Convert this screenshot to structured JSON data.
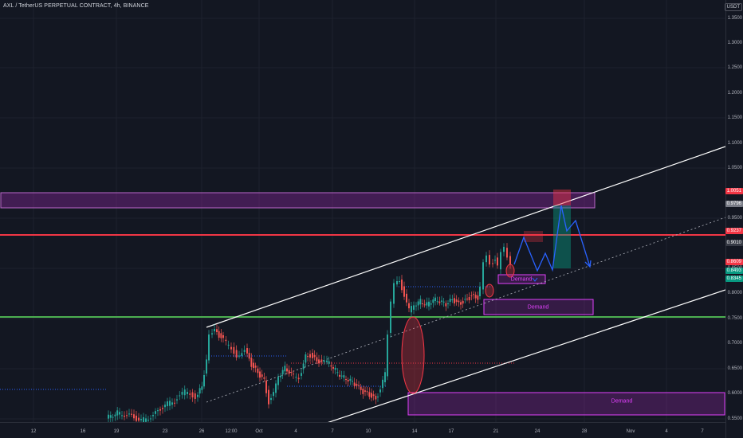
{
  "header": {
    "title": "AXL / TetherUS PERPETUAL CONTRACT, 4h, BINANCE"
  },
  "axis": {
    "unit": "USDT",
    "y_ticks": [
      "1.3500",
      "1.3000",
      "1.2500",
      "1.2000",
      "1.1500",
      "1.1000",
      "1.0500",
      "0.9500",
      "0.8500",
      "0.8000",
      "0.7500",
      "0.7000",
      "0.6500",
      "0.6000",
      "0.5500"
    ],
    "x_ticks": [
      "12",
      "16",
      "19",
      "23",
      "26",
      "12:00",
      "Oct",
      "4",
      "7",
      "10",
      "14",
      "17",
      "21",
      "24",
      "28",
      "Nov",
      "4",
      "7"
    ]
  },
  "price_labels": [
    {
      "text": "1.0051",
      "color": "#f23645"
    },
    {
      "text": "0.9796",
      "color": "#787b86"
    },
    {
      "text": "0.9237",
      "color": "#f23645"
    },
    {
      "text": "0.9010",
      "color": "#363a45"
    },
    {
      "text": "0.8609",
      "color": "#f23645"
    },
    {
      "text": "0.8493",
      "color": "#089981"
    },
    {
      "text": "0.8345",
      "color": "#089981"
    }
  ],
  "zones": {
    "top": {
      "label": "",
      "color": "#9c27b0"
    },
    "demand1": {
      "label": "Demand",
      "color": "#e040fb"
    },
    "demand2": {
      "label": "Demand",
      "color": "#e040fb"
    },
    "demand3": {
      "label": "Demand",
      "color": "#e040fb"
    }
  },
  "lines": {
    "resistance_color": "#f23645",
    "support_color": "#4caf50",
    "channel_color": "#ffffff",
    "projection_color": "#2962ff"
  },
  "colors": {
    "up": "#26a69a",
    "down": "#ef5350",
    "background": "#131722"
  }
}
